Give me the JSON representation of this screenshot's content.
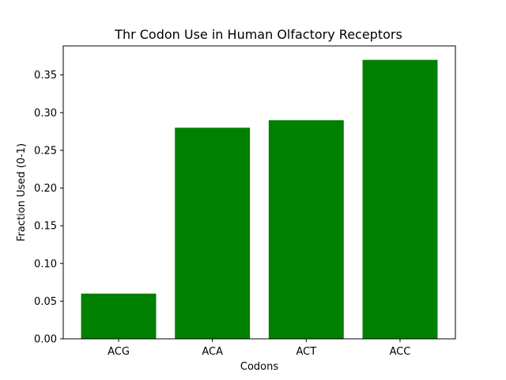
{
  "chart_data": {
    "type": "bar",
    "title": "Thr Codon Use in Human Olfactory Receptors",
    "xlabel": "Codons",
    "ylabel": "Fraction Used (0-1)",
    "categories": [
      "ACG",
      "ACA",
      "ACT",
      "ACC"
    ],
    "values": [
      0.06,
      0.28,
      0.29,
      0.37
    ],
    "ylim": [
      0,
      0.3885
    ],
    "yticks": [
      0.0,
      0.05,
      0.1,
      0.15,
      0.2,
      0.25,
      0.3,
      0.35
    ],
    "ytick_labels": [
      "0.00",
      "0.05",
      "0.10",
      "0.15",
      "0.20",
      "0.25",
      "0.30",
      "0.35"
    ],
    "bar_color": "#008000",
    "grid": false,
    "legend": "none"
  }
}
